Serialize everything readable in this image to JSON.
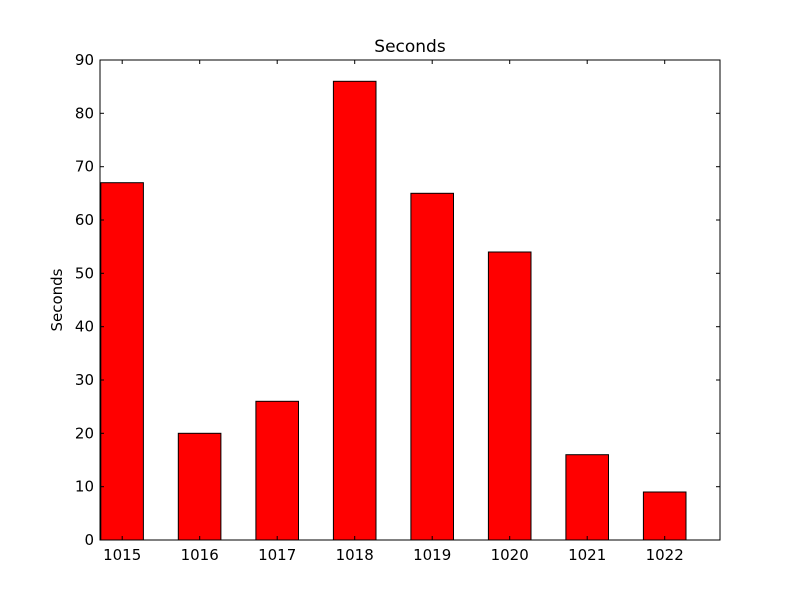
{
  "chart_data": {
    "type": "bar",
    "title": "Seconds",
    "xlabel": "",
    "ylabel": "Seconds",
    "categories": [
      "1015",
      "1016",
      "1017",
      "1018",
      "1019",
      "1020",
      "1021",
      "1022"
    ],
    "values": [
      67,
      20,
      26,
      86,
      65,
      54,
      16,
      9
    ],
    "ylim": [
      0,
      90
    ],
    "yticks": [
      "0",
      "10",
      "20",
      "30",
      "40",
      "50",
      "60",
      "70",
      "80",
      "90"
    ],
    "bar_color": "#ff0000",
    "edge_color": "#000000",
    "grid": false
  }
}
